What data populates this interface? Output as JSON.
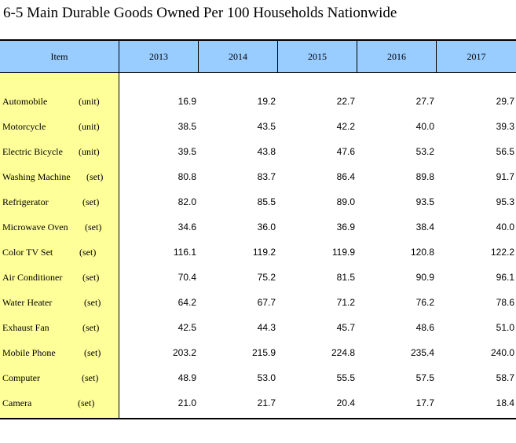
{
  "title": "6-5  Main Durable Goods Owned Per 100 Households Nationwide",
  "header": {
    "item": "Item",
    "years": [
      "2013",
      "2014",
      "2015",
      "2016",
      "2017"
    ]
  },
  "rows": [
    {
      "item": "Automobile",
      "unit": "(unit)",
      "values": [
        "16.9",
        "19.2",
        "22.7",
        "27.7",
        "29.7"
      ]
    },
    {
      "item": "Motorcycle",
      "unit": "(unit)",
      "values": [
        "38.5",
        "43.5",
        "42.2",
        "40.0",
        "39.3"
      ]
    },
    {
      "item": "Electric Bicycle",
      "unit": "(unit)",
      "values": [
        "39.5",
        "43.8",
        "47.6",
        "53.2",
        "56.5"
      ]
    },
    {
      "item": "Washing Machine",
      "unit": "(set)",
      "values": [
        "80.8",
        "83.7",
        "86.4",
        "89.8",
        "91.7"
      ]
    },
    {
      "item": "Refrigerator",
      "unit": "(set)",
      "values": [
        "82.0",
        "85.5",
        "89.0",
        "93.5",
        "95.3"
      ]
    },
    {
      "item": "Microwave Oven",
      "unit": "(set)",
      "values": [
        "34.6",
        "36.0",
        "36.9",
        "38.4",
        "40.0"
      ]
    },
    {
      "item": "Color TV Set",
      "unit": "(set)",
      "values": [
        "116.1",
        "119.2",
        "119.9",
        "120.8",
        "122.2"
      ]
    },
    {
      "item": "Air Conditioner",
      "unit": "(set)",
      "values": [
        "70.4",
        "75.2",
        "81.5",
        "90.9",
        "96.1"
      ]
    },
    {
      "item": "Water Heater",
      "unit": "(set)",
      "values": [
        "64.2",
        "67.7",
        "71.2",
        "76.2",
        "78.6"
      ]
    },
    {
      "item": "Exhaust Fan",
      "unit": "(set)",
      "values": [
        "42.5",
        "44.3",
        "45.7",
        "48.6",
        "51.0"
      ]
    },
    {
      "item": "Mobile Phone",
      "unit": "(set)",
      "values": [
        "203.2",
        "215.9",
        "224.8",
        "235.4",
        "240.0"
      ]
    },
    {
      "item": "Computer",
      "unit": "(set)",
      "values": [
        "48.9",
        "53.0",
        "55.5",
        "57.5",
        "58.7"
      ]
    },
    {
      "item": "Camera",
      "unit": "(set)",
      "values": [
        "21.0",
        "21.7",
        "20.4",
        "17.7",
        "18.4"
      ]
    }
  ],
  "colors": {
    "header_bg": "#99ccff",
    "item_column_bg": "#ffff99"
  }
}
